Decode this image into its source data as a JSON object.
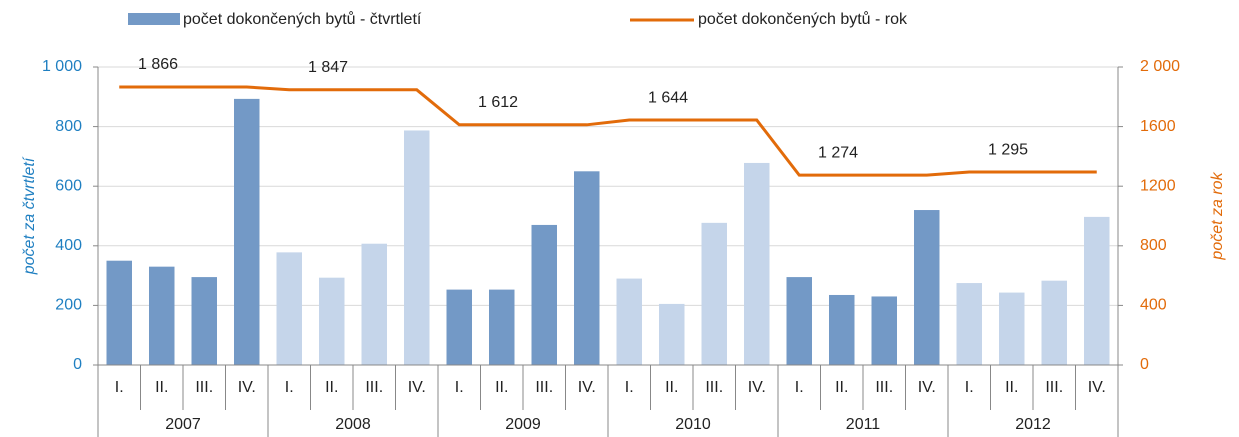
{
  "chart_data": {
    "type": "bar-line",
    "categories": [
      "I.",
      "II.",
      "III.",
      "IV.",
      "I.",
      "II.",
      "III.",
      "IV.",
      "I.",
      "II.",
      "III.",
      "IV.",
      "I.",
      "II.",
      "III.",
      "IV.",
      "I.",
      "II.",
      "III.",
      "IV.",
      "I.",
      "II.",
      "III.",
      "IV."
    ],
    "groups": [
      "2007",
      "2008",
      "2009",
      "2010",
      "2011",
      "2012"
    ],
    "series": [
      {
        "name": "počet dokončených bytů - čtvrtletí",
        "type": "bar",
        "color": "#7399c6",
        "bar_colors": [
          "#7399c6",
          "#7399c6",
          "#7399c6",
          "#7399c6",
          "#c5d5ea",
          "#c5d5ea",
          "#c5d5ea",
          "#c5d5ea",
          "#7399c6",
          "#7399c6",
          "#7399c6",
          "#7399c6",
          "#c5d5ea",
          "#c5d5ea",
          "#c5d5ea",
          "#c5d5ea",
          "#7399c6",
          "#7399c6",
          "#7399c6",
          "#7399c6",
          "#c5d5ea",
          "#c5d5ea",
          "#c5d5ea",
          "#c5d5ea"
        ],
        "values": [
          350,
          330,
          295,
          893,
          378,
          293,
          407,
          787,
          253,
          253,
          470,
          650,
          290,
          205,
          477,
          678,
          295,
          235,
          230,
          520,
          275,
          243,
          283,
          497
        ]
      },
      {
        "name": "počet dokončených bytů - rok",
        "type": "line",
        "color": "#e26b0a",
        "axis": "y2",
        "values": [
          1866,
          1866,
          1866,
          1866,
          1847,
          1847,
          1847,
          1847,
          1612,
          1612,
          1612,
          1612,
          1644,
          1644,
          1644,
          1644,
          1274,
          1274,
          1274,
          1274,
          1295,
          1295,
          1295,
          1295
        ],
        "value_labels": [
          null,
          "1 866",
          null,
          null,
          null,
          "1 847",
          null,
          null,
          null,
          "1 612",
          null,
          null,
          null,
          "1 644",
          null,
          null,
          null,
          "1 274",
          null,
          null,
          null,
          "1 295",
          null,
          null
        ]
      }
    ],
    "y_label": "počet za čtvrtletí",
    "y2_label": "počet za rok",
    "ylim": [
      0,
      1000
    ],
    "yticks": [
      0,
      200,
      400,
      600,
      800,
      {
        "value": 1000,
        "label": "1 000"
      }
    ],
    "y2lim": [
      0,
      2000
    ],
    "y2ticks": [
      0,
      400,
      800,
      1200,
      1600,
      {
        "value": 2000,
        "label": "2 000"
      }
    ],
    "y_color": "#1f7fc1",
    "grid": true
  }
}
